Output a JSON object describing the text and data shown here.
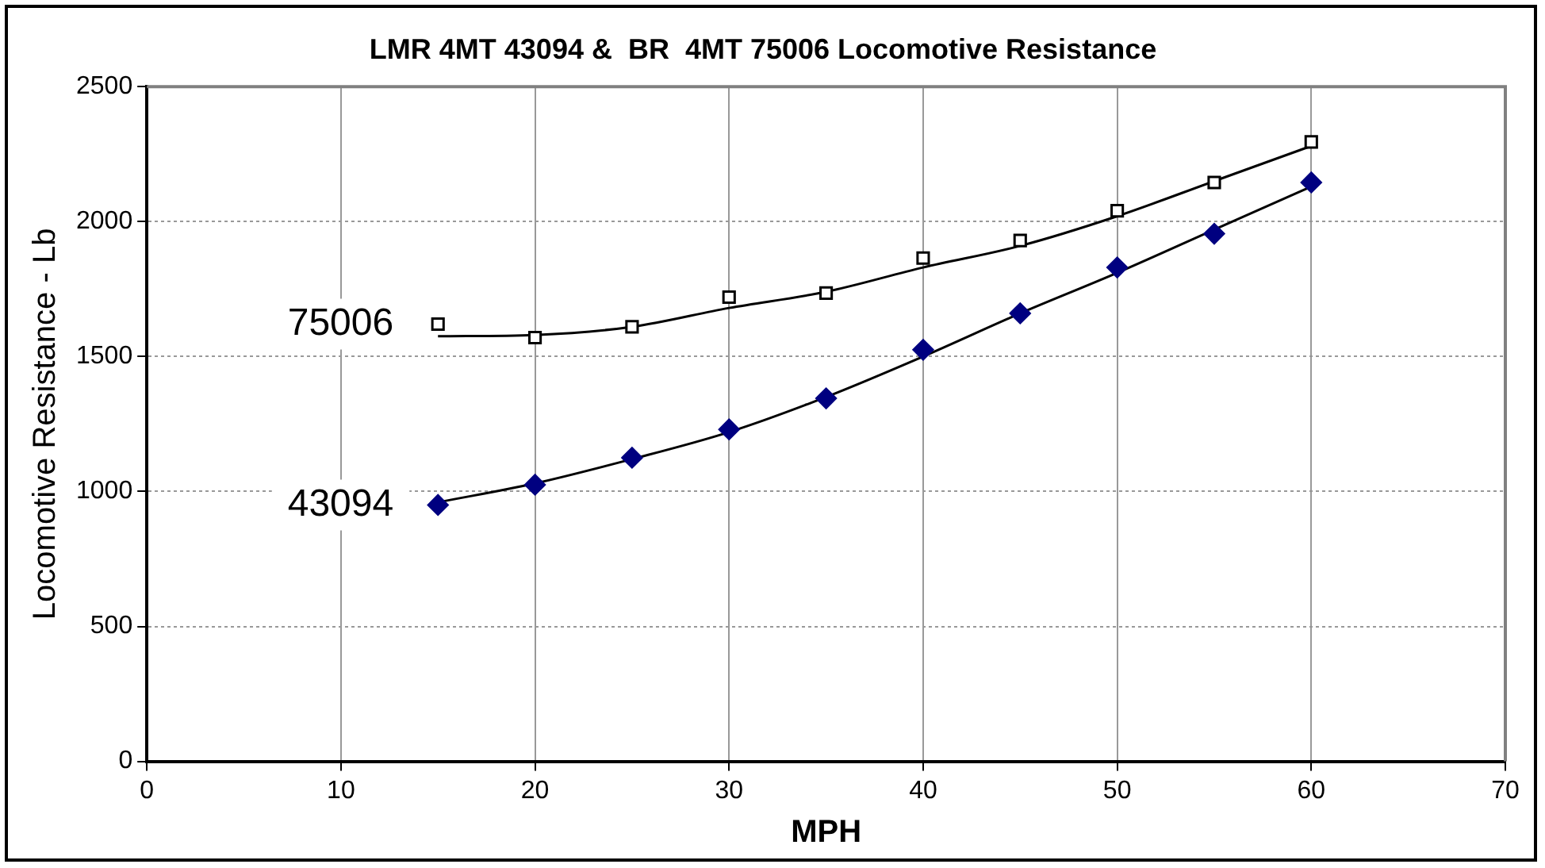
{
  "chart_data": {
    "type": "scatter",
    "title": "LMR 4MT 43094 &  BR  4MT 75006 Locomotive Resistance",
    "xlabel": "MPH",
    "ylabel": "Locomotive Resistance - Lb",
    "xlim": [
      0,
      70
    ],
    "xticks": [
      0,
      10,
      20,
      30,
      40,
      50,
      60,
      70
    ],
    "ylim": [
      0,
      2500
    ],
    "yticks": [
      0,
      500,
      1000,
      1500,
      2000,
      2500
    ],
    "grid": true,
    "legend": false,
    "series": [
      {
        "name": "75006",
        "type": "scatter",
        "marker": "square",
        "color": "#000000",
        "x": [
          15,
          20,
          25,
          30,
          35,
          40,
          45,
          50,
          55,
          60
        ],
        "values": [
          1620,
          1570,
          1610,
          1720,
          1735,
          1865,
          1930,
          2040,
          2145,
          2295
        ]
      },
      {
        "name": "43094",
        "type": "scatter",
        "marker": "diamond",
        "color": "#000080",
        "x": [
          15,
          20,
          25,
          30,
          35,
          40,
          45,
          50,
          55,
          60
        ],
        "values": [
          950,
          1025,
          1125,
          1230,
          1345,
          1525,
          1660,
          1830,
          1955,
          2145
        ]
      },
      {
        "type": "line",
        "marker": "none",
        "line_style": "solid",
        "color": "#000000",
        "x": [
          15,
          20,
          25,
          30,
          35,
          40,
          45,
          50,
          55,
          60
        ],
        "values": [
          1575,
          1580,
          1610,
          1680,
          1740,
          1830,
          1910,
          2020,
          2150,
          2280
        ]
      },
      {
        "type": "line",
        "marker": "none",
        "line_style": "solid",
        "color": "#000000",
        "x": [
          15,
          20,
          25,
          30,
          35,
          40,
          45,
          50,
          55,
          60
        ],
        "values": [
          960,
          1030,
          1120,
          1220,
          1350,
          1500,
          1660,
          1810,
          1970,
          2130
        ]
      }
    ]
  }
}
